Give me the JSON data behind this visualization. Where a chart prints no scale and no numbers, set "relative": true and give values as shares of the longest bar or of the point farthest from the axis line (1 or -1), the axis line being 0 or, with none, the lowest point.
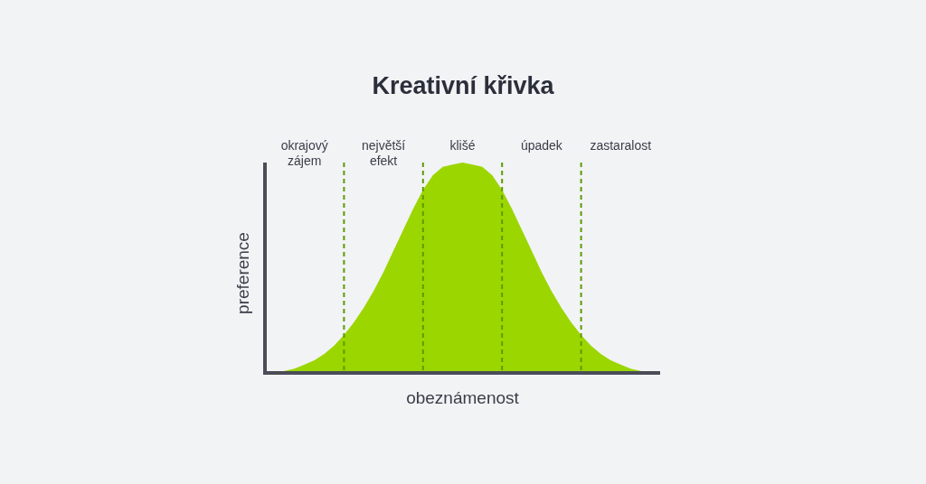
{
  "chart_data": {
    "type": "area",
    "title": "Kreativní křivka",
    "xlabel": "obeznámenost",
    "ylabel": "preference",
    "relative": true,
    "grid": "x",
    "categories": [
      null,
      null,
      null,
      null,
      null,
      null,
      null,
      null,
      null,
      null,
      null,
      null,
      null,
      null,
      null,
      null,
      null,
      null,
      null,
      null,
      null,
      null,
      null,
      null,
      null,
      null,
      null,
      null,
      null,
      null,
      null,
      null,
      null,
      null,
      null,
      null,
      null,
      null,
      null,
      null,
      null
    ],
    "series": [
      {
        "color": "#9bd600",
        "values": [
          0,
          0,
          0.01,
          0.02,
          0.04,
          0.06,
          0.09,
          0.13,
          0.18,
          0.24,
          0.31,
          0.39,
          0.48,
          0.58,
          0.68,
          0.78,
          0.87,
          0.94,
          0.98,
          0.99,
          1,
          0.99,
          0.98,
          0.94,
          0.87,
          0.78,
          0.68,
          0.58,
          0.48,
          0.39,
          0.31,
          0.24,
          0.18,
          0.13,
          0.09,
          0.06,
          0.04,
          0.02,
          0.01,
          0,
          0
        ]
      }
    ],
    "annotations": [
      "okrajový zájem",
      "největší efekt",
      "klišé",
      "úpadek",
      "zastaralost"
    ]
  }
}
